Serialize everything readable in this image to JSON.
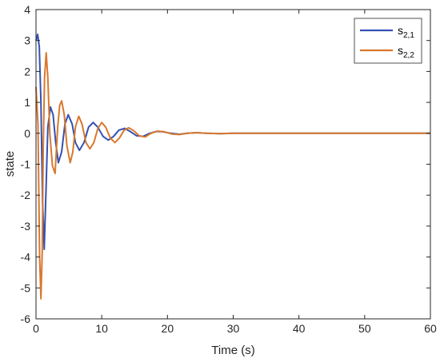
{
  "chart_data": {
    "type": "line",
    "xlabel": "Time (s)",
    "ylabel": "state",
    "xlim": [
      0,
      60
    ],
    "ylim": [
      -6,
      4
    ],
    "x_ticks": [
      0,
      10,
      20,
      30,
      40,
      50,
      60
    ],
    "y_ticks": [
      -6,
      -5,
      -4,
      -3,
      -2,
      -1,
      0,
      1,
      2,
      3,
      4
    ],
    "grid": false,
    "legend_position": "top-right",
    "series": [
      {
        "name": "s",
        "subscript": "2,1",
        "color": "#3352b3",
        "points": [
          [
            0,
            3.0
          ],
          [
            0.25,
            3.2
          ],
          [
            0.5,
            2.8
          ],
          [
            0.75,
            1.0
          ],
          [
            1.0,
            -2.2
          ],
          [
            1.25,
            -3.75
          ],
          [
            1.5,
            -2.0
          ],
          [
            1.8,
            0.2
          ],
          [
            2.2,
            0.85
          ],
          [
            2.6,
            0.6
          ],
          [
            3.0,
            -0.3
          ],
          [
            3.4,
            -0.95
          ],
          [
            3.9,
            -0.6
          ],
          [
            4.4,
            0.3
          ],
          [
            4.9,
            0.6
          ],
          [
            5.5,
            0.3
          ],
          [
            6.0,
            -0.3
          ],
          [
            6.6,
            -0.55
          ],
          [
            7.3,
            -0.3
          ],
          [
            8.0,
            0.2
          ],
          [
            8.7,
            0.35
          ],
          [
            9.4,
            0.2
          ],
          [
            10.2,
            -0.1
          ],
          [
            11.0,
            -0.22
          ],
          [
            11.8,
            -0.1
          ],
          [
            12.6,
            0.1
          ],
          [
            13.5,
            0.16
          ],
          [
            14.4,
            0.05
          ],
          [
            15.3,
            -0.08
          ],
          [
            16.3,
            -0.1
          ],
          [
            17.3,
            0.0
          ],
          [
            18.3,
            0.06
          ],
          [
            19.3,
            0.05
          ],
          [
            20.5,
            0.0
          ],
          [
            21.8,
            -0.03
          ],
          [
            23.0,
            0.0
          ],
          [
            24.5,
            0.02
          ],
          [
            26.0,
            0.0
          ],
          [
            28.0,
            -0.01
          ],
          [
            30.0,
            0.0
          ],
          [
            40.0,
            0.0
          ],
          [
            50.0,
            0.0
          ],
          [
            60.0,
            0.0
          ]
        ]
      },
      {
        "name": "s",
        "subscript": "2,2",
        "color": "#d9782d",
        "points": [
          [
            0,
            1.5
          ],
          [
            0.3,
            0.3
          ],
          [
            0.55,
            -4.0
          ],
          [
            0.75,
            -5.35
          ],
          [
            0.95,
            -3.8
          ],
          [
            1.1,
            -0.5
          ],
          [
            1.3,
            1.8
          ],
          [
            1.55,
            2.6
          ],
          [
            1.8,
            1.8
          ],
          [
            2.1,
            0.0
          ],
          [
            2.5,
            -1.05
          ],
          [
            2.9,
            -1.3
          ],
          [
            3.3,
            0.2
          ],
          [
            3.6,
            0.9
          ],
          [
            3.9,
            1.05
          ],
          [
            4.3,
            0.6
          ],
          [
            4.7,
            -0.4
          ],
          [
            5.2,
            -0.95
          ],
          [
            5.6,
            -0.6
          ],
          [
            6.0,
            0.2
          ],
          [
            6.5,
            0.55
          ],
          [
            7.0,
            0.3
          ],
          [
            7.6,
            -0.3
          ],
          [
            8.2,
            -0.5
          ],
          [
            8.8,
            -0.3
          ],
          [
            9.4,
            0.15
          ],
          [
            10.0,
            0.35
          ],
          [
            10.6,
            0.2
          ],
          [
            11.3,
            -0.15
          ],
          [
            12.0,
            -0.3
          ],
          [
            12.7,
            -0.15
          ],
          [
            13.4,
            0.1
          ],
          [
            14.1,
            0.18
          ],
          [
            14.9,
            0.08
          ],
          [
            15.7,
            -0.08
          ],
          [
            16.6,
            -0.12
          ],
          [
            17.5,
            0.0
          ],
          [
            18.5,
            0.07
          ],
          [
            19.5,
            0.05
          ],
          [
            20.6,
            -0.02
          ],
          [
            21.8,
            -0.04
          ],
          [
            23.0,
            0.0
          ],
          [
            24.5,
            0.02
          ],
          [
            26.0,
            0.0
          ],
          [
            28.0,
            -0.01
          ],
          [
            30.0,
            0.0
          ],
          [
            40.0,
            0.0
          ],
          [
            50.0,
            0.0
          ],
          [
            60.0,
            0.0
          ]
        ]
      }
    ]
  }
}
